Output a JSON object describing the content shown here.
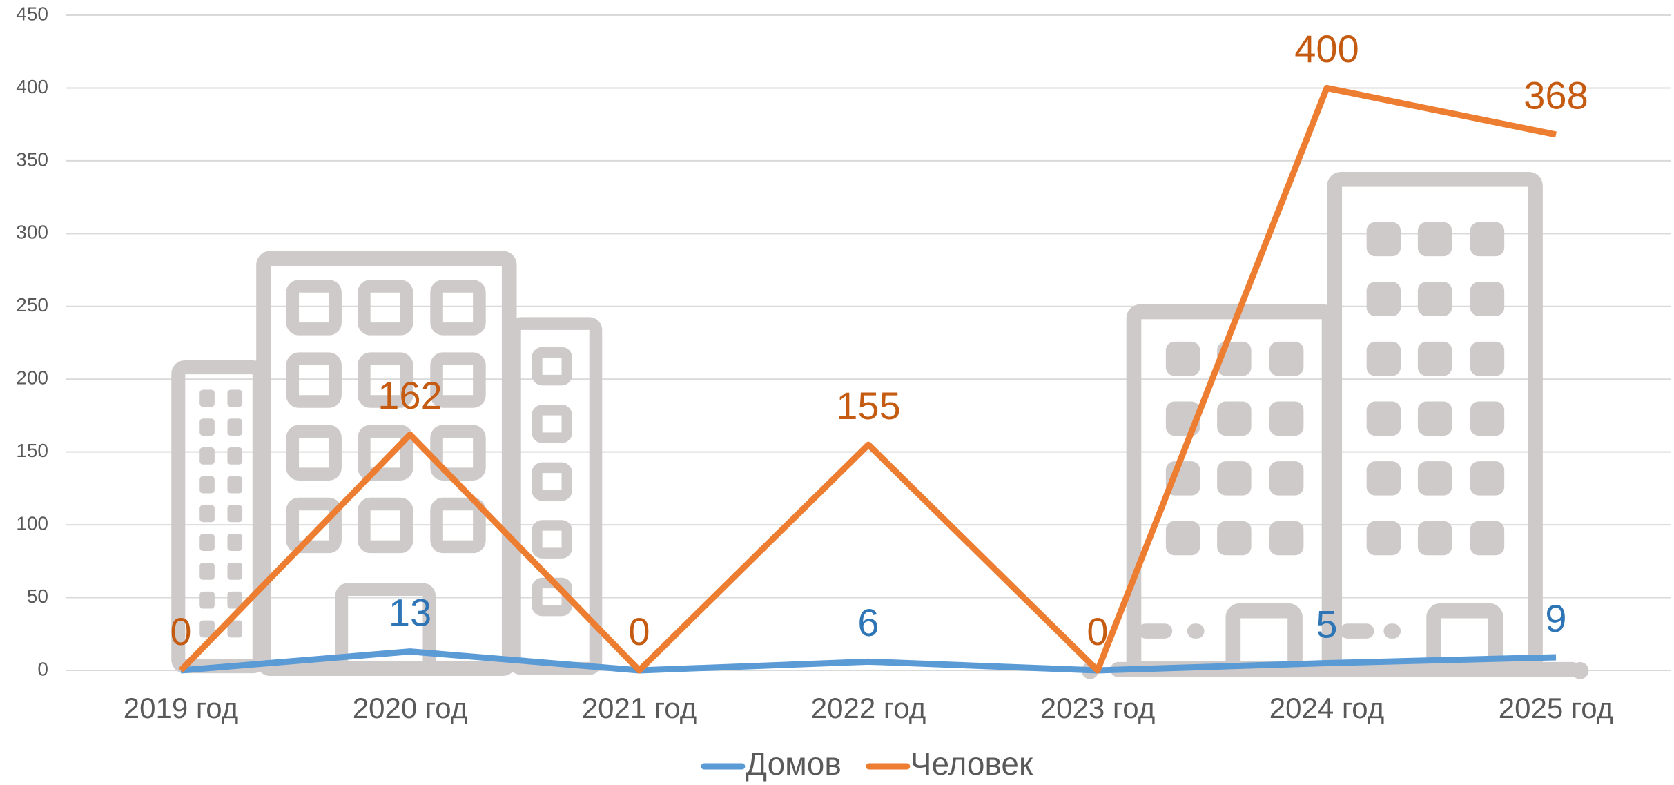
{
  "chart_data": {
    "type": "line",
    "categories": [
      "2019 год",
      "2020 год",
      "2021 год",
      "2022 год",
      "2023 год",
      "2024 год",
      "2025 год"
    ],
    "series": [
      {
        "name": "Домов",
        "color": "#5b9bd5",
        "label_color": "#2e75b6",
        "values": [
          0,
          13,
          0,
          6,
          0,
          5,
          9
        ],
        "value_labels": [
          null,
          "13",
          null,
          "6",
          null,
          "5",
          "9"
        ]
      },
      {
        "name": "Человек",
        "color": "#ed7d31",
        "label_color": "#c55a11",
        "values": [
          0,
          162,
          0,
          155,
          0,
          400,
          368
        ]
      }
    ],
    "ylim": [
      0,
      450
    ],
    "yticks": [
      0,
      50,
      100,
      150,
      200,
      250,
      300,
      350,
      400,
      450
    ],
    "grid": true,
    "legend": "bottom"
  }
}
